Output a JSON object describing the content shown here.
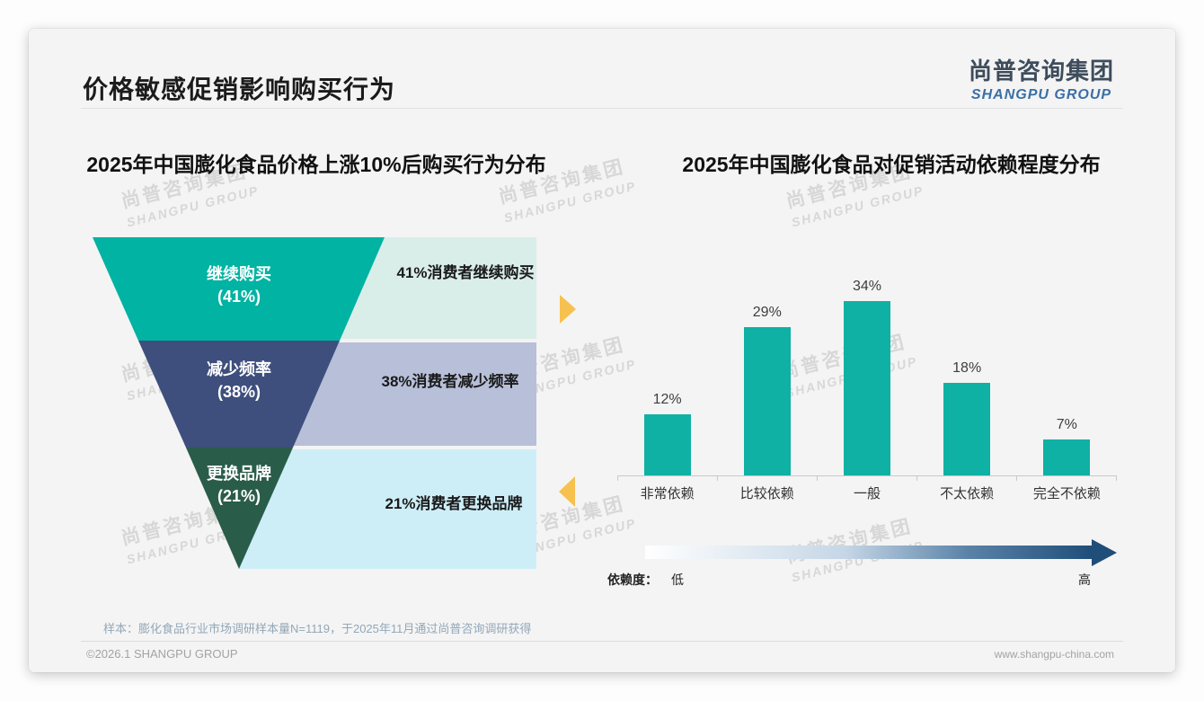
{
  "slide": {
    "title": "价格敏感促销影响购买行为"
  },
  "logo": {
    "cn": "尚普咨询集团",
    "en": "SHANGPU GROUP"
  },
  "watermark": {
    "cn": "尚普咨询集团",
    "en": "SHANGPU GROUP"
  },
  "chart_data": [
    {
      "type": "funnel",
      "title": "2025年中国膨化食品价格上涨10%后购买行为分布",
      "categories": [
        "继续购买",
        "减少频率",
        "更换品牌"
      ],
      "values": [
        41,
        38,
        21
      ],
      "level_pcts": [
        "(41%)",
        "(38%)",
        "(21%)"
      ],
      "notes": [
        "41%消费者继续购买",
        "38%消费者减少频率",
        "21%消费者更换品牌"
      ],
      "colors": [
        "#00b3a2",
        "#3e4f7d",
        "#2a5c4a"
      ],
      "note_bgs": [
        "#d9ede9",
        "#b8bfd9",
        "#cdeef7"
      ]
    },
    {
      "type": "bar",
      "title": "2025年中国膨化食品对促销活动依赖程度分布",
      "categories": [
        "非常依赖",
        "比较依赖",
        "一般",
        "不太依赖",
        "完全不依赖"
      ],
      "values": [
        12,
        29,
        34,
        18,
        7
      ],
      "value_labels": [
        "12%",
        "29%",
        "34%",
        "18%",
        "7%"
      ],
      "color": "#0fb1a4",
      "ylabel": "",
      "xlabel": "",
      "ylim": [
        0,
        40
      ],
      "grid": false,
      "legend": "none"
    }
  ],
  "dependency_scale": {
    "label": "依赖度：",
    "low": "低",
    "high": "高",
    "gradient_from": "#ffffff",
    "gradient_to": "#1f4e79"
  },
  "accents": {
    "arrow_yellow": "#f6c14f"
  },
  "footnote": "样本：膨化食品行业市场调研样本量N=1119，于2025年11月通过尚普咨询调研获得",
  "footer": {
    "left": "©2026.1 SHANGPU GROUP",
    "right": "www.shangpu-china.com"
  }
}
